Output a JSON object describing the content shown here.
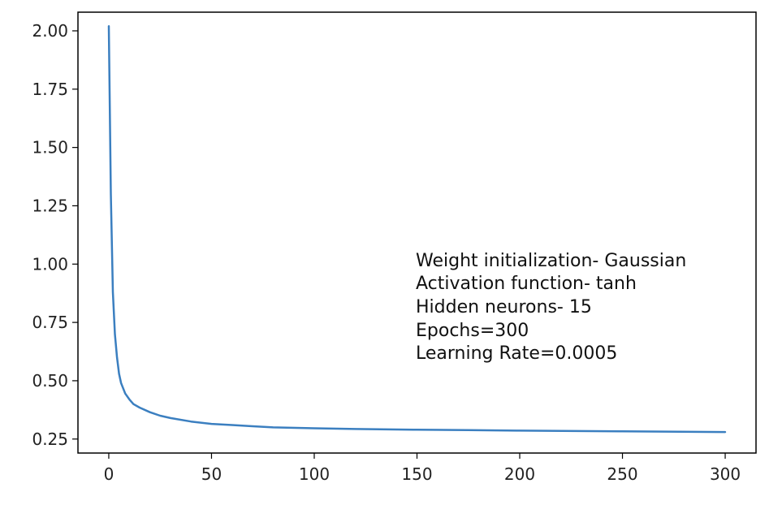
{
  "chart_data": {
    "type": "line",
    "title": "",
    "xlabel": "",
    "ylabel": "",
    "xlim": [
      -15,
      315
    ],
    "ylim": [
      0.19,
      2.08
    ],
    "xticks": [
      0,
      50,
      100,
      150,
      200,
      250,
      300
    ],
    "xtick_labels": [
      "0",
      "50",
      "100",
      "150",
      "200",
      "250",
      "300"
    ],
    "yticks": [
      0.25,
      0.5,
      0.75,
      1.0,
      1.25,
      1.5,
      1.75,
      2.0
    ],
    "ytick_labels": [
      "0.25",
      "0.50",
      "0.75",
      "1.00",
      "1.25",
      "1.50",
      "1.75",
      "2.00"
    ],
    "grid": false,
    "series": [
      {
        "color": "#3b7fc0",
        "x": [
          0,
          1,
          2,
          3,
          4,
          5,
          6,
          8,
          10,
          12,
          15,
          20,
          25,
          30,
          40,
          50,
          60,
          70,
          80,
          100,
          120,
          150,
          175,
          200,
          250,
          300
        ],
        "y": [
          2.02,
          1.3,
          0.88,
          0.7,
          0.6,
          0.53,
          0.49,
          0.445,
          0.42,
          0.4,
          0.385,
          0.365,
          0.35,
          0.34,
          0.325,
          0.315,
          0.31,
          0.305,
          0.3,
          0.296,
          0.293,
          0.29,
          0.288,
          0.286,
          0.283,
          0.28
        ]
      }
    ],
    "annotation": {
      "lines": [
        "Weight initialization- Gaussian",
        "Activation function- tanh",
        "Hidden neurons- 15",
        "Epochs=300",
        "Learning Rate=0.0005"
      ]
    }
  }
}
